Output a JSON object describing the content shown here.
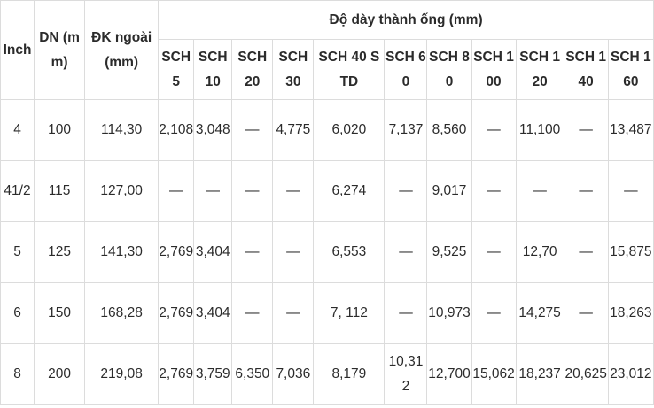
{
  "headers": {
    "inch": "Inch",
    "dn": "DN (mm)",
    "od": "ĐK ngoài (mm)",
    "thickness": "Độ dày thành ống (mm)",
    "schedules": [
      "SCH5",
      "SCH 10",
      "SCH 20",
      "SCH 30",
      "SCH 40 S TD",
      "SCH 60",
      "SCH 80",
      "SCH 100",
      "SCH 120",
      "SCH 140",
      "SCH 160"
    ]
  },
  "rows": [
    {
      "inch": "4",
      "dn": "100",
      "od": "114,30",
      "v": [
        "2,108",
        "3,048",
        "—",
        "4,775",
        "6,020",
        "7,137",
        "8,560",
        "—",
        "11,100",
        "—",
        "13,487"
      ]
    },
    {
      "inch": "41/2",
      "dn": "115",
      "od": "127,00",
      "v": [
        "—",
        "—",
        "—",
        "—",
        "6,274",
        "—",
        "9,017",
        "—",
        "—",
        "—",
        "—"
      ]
    },
    {
      "inch": "5",
      "dn": "125",
      "od": "141,30",
      "v": [
        "2,769",
        "3,404",
        "—",
        "—",
        "6,553",
        "—",
        "9,525",
        "—",
        "12,70",
        "—",
        "15,875"
      ]
    },
    {
      "inch": "6",
      "dn": "150",
      "od": "168,28",
      "v": [
        "2,769",
        "3,404",
        "—",
        "—",
        "7, 112",
        "—",
        "10,973",
        "—",
        "14,275",
        "—",
        "18,263"
      ]
    },
    {
      "inch": "8",
      "dn": "200",
      "od": "219,08",
      "v": [
        "2,769",
        "3,759",
        "6,350",
        "7,036",
        "8,179",
        "10,312",
        "12,700",
        "15,062",
        "18,237",
        "20,625",
        "23,012"
      ]
    }
  ]
}
